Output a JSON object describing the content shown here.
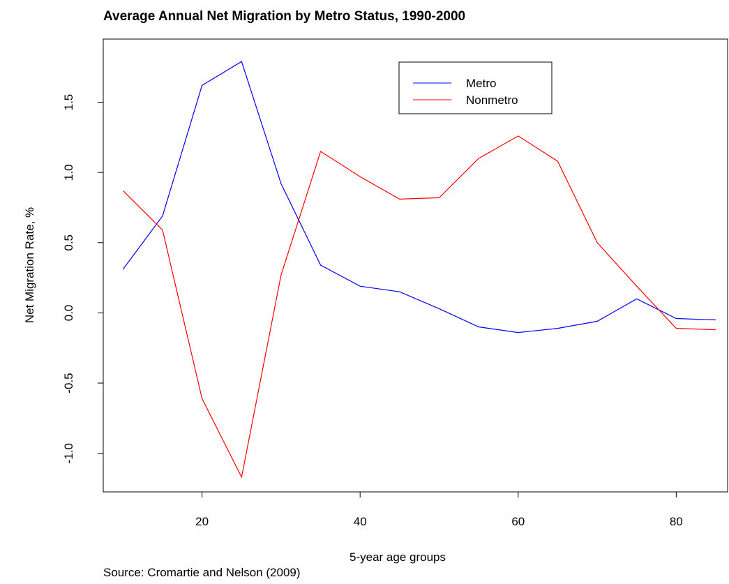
{
  "chart_data": {
    "type": "line",
    "title": "Average Annual Net Migration by Metro Status, 1990-2000",
    "xlabel": "5-year age groups",
    "ylabel": "Net Migration Rate, %",
    "source": "Source: Cromartie and Nelson (2009)",
    "xlim": [
      7.5,
      86.5
    ],
    "ylim": [
      -1.275,
      1.95
    ],
    "x_ticks": [
      20,
      40,
      60,
      80
    ],
    "x_tick_labels": [
      "20",
      "40",
      "60",
      "80"
    ],
    "y_ticks": [
      -1.0,
      -0.5,
      0.0,
      0.5,
      1.0,
      1.5
    ],
    "y_tick_labels": [
      "-1.0",
      "-0.5",
      "0.0",
      "0.5",
      "1.0",
      "1.5"
    ],
    "grid": false,
    "legend_position": "top-right",
    "x": [
      10,
      15,
      20,
      25,
      30,
      35,
      40,
      45,
      50,
      55,
      60,
      65,
      70,
      75,
      80,
      85
    ],
    "series": [
      {
        "name": "Metro",
        "color": "#0000ff",
        "values": [
          0.31,
          0.69,
          1.62,
          1.79,
          0.92,
          0.34,
          0.19,
          0.15,
          0.03,
          -0.1,
          -0.14,
          -0.11,
          -0.06,
          0.1,
          -0.04,
          -0.05
        ]
      },
      {
        "name": "Nonmetro",
        "color": "#ff0000",
        "values": [
          0.87,
          0.59,
          -0.61,
          -1.17,
          0.27,
          1.15,
          0.97,
          0.81,
          0.82,
          1.1,
          1.26,
          1.08,
          0.5,
          0.19,
          -0.11,
          -0.12
        ]
      }
    ]
  }
}
